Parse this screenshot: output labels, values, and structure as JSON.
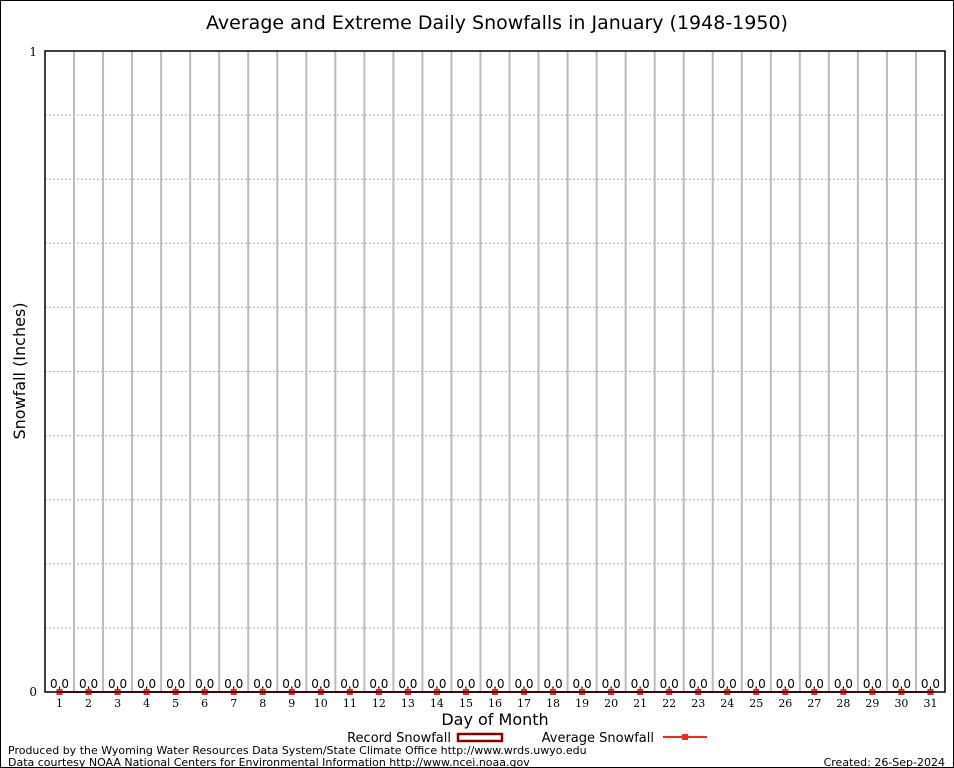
{
  "chart_data": {
    "type": "bar",
    "title": "Average and Extreme Daily Snowfalls in January (1948-1950)",
    "xlabel": "Day of Month",
    "ylabel": "Snowfall (Inches)",
    "ylim": [
      0,
      1
    ],
    "yticks": [
      "0",
      "1"
    ],
    "grid": true,
    "categories": [
      "1",
      "2",
      "3",
      "4",
      "5",
      "6",
      "7",
      "8",
      "9",
      "10",
      "11",
      "12",
      "13",
      "14",
      "15",
      "16",
      "17",
      "18",
      "19",
      "20",
      "21",
      "22",
      "23",
      "24",
      "25",
      "26",
      "27",
      "28",
      "29",
      "30",
      "31"
    ],
    "series": [
      {
        "name": "Record Snowfall",
        "type": "bar",
        "color": "#8b0000",
        "values": [
          0,
          0,
          0,
          0,
          0,
          0,
          0,
          0,
          0,
          0,
          0,
          0,
          0,
          0,
          0,
          0,
          0,
          0,
          0,
          0,
          0,
          0,
          0,
          0,
          0,
          0,
          0,
          0,
          0,
          0,
          0
        ],
        "labels": [
          "0.0",
          "0.0",
          "0.0",
          "0.0",
          "0.0",
          "0.0",
          "0.0",
          "0.0",
          "0.0",
          "0.0",
          "0.0",
          "0.0",
          "0.0",
          "0.0",
          "0.0",
          "0.0",
          "0.0",
          "0.0",
          "0.0",
          "0.0",
          "0.0",
          "0.0",
          "0.0",
          "0.0",
          "0.0",
          "0.0",
          "0.0",
          "0.0",
          "0.0",
          "0.0",
          "0.0"
        ]
      },
      {
        "name": "Average Snowfall",
        "type": "line",
        "color": "#ff2020",
        "values": [
          0,
          0,
          0,
          0,
          0,
          0,
          0,
          0,
          0,
          0,
          0,
          0,
          0,
          0,
          0,
          0,
          0,
          0,
          0,
          0,
          0,
          0,
          0,
          0,
          0,
          0,
          0,
          0,
          0,
          0,
          0
        ]
      }
    ],
    "legend": "bottom"
  },
  "footer": {
    "produced_by": "Produced by the Wyoming Water Resources Data System/State Climate Office http://www.wrds.uwyo.edu",
    "data_courtesy": "Data courtesy NOAA National Centers for Environmental Information http://www.ncei.noaa.gov",
    "created": "Created: 26-Sep-2024"
  }
}
